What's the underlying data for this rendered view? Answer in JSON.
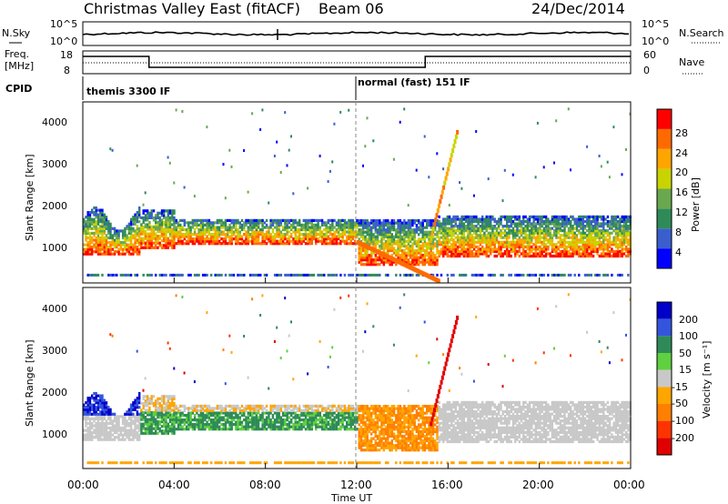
{
  "header": {
    "title": "Christmas Valley East (fitACF)",
    "beam": "Beam 06",
    "date": "24/Dec/2014"
  },
  "noise_panel": {
    "left_label": "N.Sky",
    "left_ticks": [
      "10^5",
      "10^0"
    ],
    "right_label": "N.Search",
    "right_ticks": [
      "10^5",
      "10^0"
    ]
  },
  "freq_panel": {
    "left_label_1": "Freq.",
    "left_label_2": "[MHz]",
    "left_ticks": [
      "18",
      "8"
    ],
    "right_label": "Nave",
    "right_ticks": [
      "60",
      "0"
    ]
  },
  "cpid": {
    "label": "CPID",
    "segments": [
      "themis 3300 IF",
      "normal (fast) 151 IF"
    ]
  },
  "colors": {
    "power": [
      "#0000ff",
      "#3a5fcd",
      "#2e8b57",
      "#6aa84f",
      "#c8d400",
      "#ffa500",
      "#ff6a00",
      "#ff0000"
    ],
    "velocity": [
      "#0000c8",
      "#3355dd",
      "#2e8b57",
      "#5fd040",
      "#c8c8c8",
      "#ffa500",
      "#ff7f00",
      "#ff3300",
      "#e00000"
    ]
  },
  "chart_data": [
    {
      "type": "heatmap",
      "name": "Power",
      "ylabel": "Slant Range [km]",
      "yticks": [
        "1000",
        "2000",
        "3000",
        "4000"
      ],
      "ylim": [
        180,
        4500
      ],
      "xlim": [
        0,
        24
      ],
      "colorbar": {
        "label": "Power [dB]",
        "ticks": [
          "4",
          "8",
          "12",
          "16",
          "20",
          "24",
          "28"
        ],
        "range": [
          0,
          32
        ]
      }
    },
    {
      "type": "heatmap",
      "name": "Velocity",
      "ylabel": "Slant Range [km]",
      "yticks": [
        "1000",
        "2000",
        "3000",
        "4000"
      ],
      "ylim": [
        180,
        4500
      ],
      "xlim": [
        0,
        24
      ],
      "xlabel": "Time UT",
      "xticks": [
        "00:00",
        "04:00",
        "08:00",
        "12:00",
        "16:00",
        "20:00",
        "00:00"
      ],
      "colorbar": {
        "label": "Velocity [m s⁻¹]",
        "ticks": [
          "200",
          "100",
          "50",
          "15",
          "-15",
          "-50",
          "-100",
          "-200"
        ]
      }
    }
  ]
}
